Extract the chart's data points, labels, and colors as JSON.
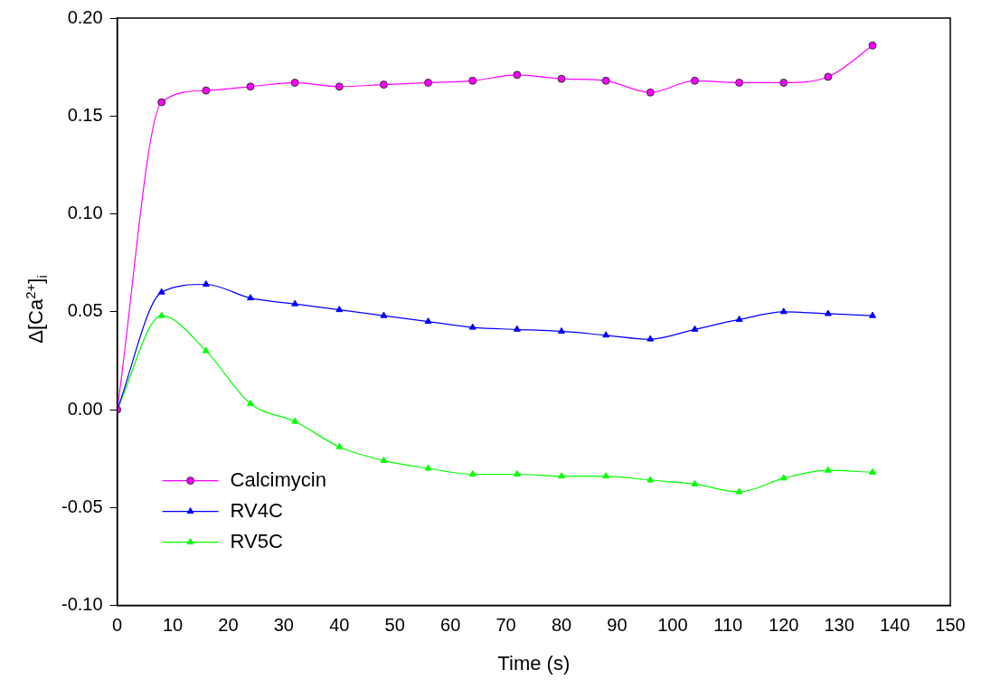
{
  "chart_data": {
    "type": "line",
    "xlabel": "Time (s)",
    "ylabel": "Δ[Ca$^{2+}$]$_{i}$",
    "xlim": [
      0,
      150
    ],
    "xticks": [
      0,
      10,
      20,
      30,
      40,
      50,
      60,
      70,
      80,
      90,
      100,
      110,
      120,
      130,
      140,
      150
    ],
    "ylim": [
      -0.1,
      0.2
    ],
    "yticks": [
      {
        "value": -0.1,
        "label": "-0.10"
      },
      {
        "value": -0.05,
        "label": "-0.05"
      },
      {
        "value": 0,
        "label": "0.00"
      },
      {
        "value": 0.05,
        "label": "0.05"
      },
      {
        "value": 0.1,
        "label": "0.10"
      },
      {
        "value": 0.15,
        "label": "0.15"
      },
      {
        "value": 0.2,
        "label": "0.20"
      }
    ],
    "grid": false,
    "legend": "bottom left",
    "x": [
      0,
      8,
      16,
      24,
      32,
      40,
      48,
      56,
      64,
      72,
      80,
      88,
      96,
      104,
      112,
      120,
      128,
      136
    ],
    "series": [
      {
        "name": "Calcimycin",
        "color": "#ff00ff",
        "marker": "circle",
        "values": [
          0,
          0.157,
          0.163,
          0.165,
          0.167,
          0.165,
          0.166,
          0.167,
          0.168,
          0.171,
          0.169,
          0.168,
          0.162,
          0.168,
          0.167,
          0.167,
          0.17,
          0.186
        ]
      },
      {
        "name": "RV4C",
        "color": "#0000ff",
        "marker": "triangle",
        "values": [
          0,
          0.06,
          0.064,
          0.057,
          0.054,
          0.051,
          0.048,
          0.045,
          0.042,
          0.041,
          0.04,
          0.038,
          0.036,
          0.041,
          0.046,
          0.05,
          0.049,
          0.048
        ]
      },
      {
        "name": "RV5C",
        "color": "#00ff00",
        "marker": "triangle",
        "values": [
          0,
          0.048,
          0.03,
          0.003,
          -0.006,
          -0.019,
          -0.026,
          -0.03,
          -0.033,
          -0.033,
          -0.034,
          -0.034,
          -0.036,
          -0.038,
          -0.042,
          -0.035,
          -0.031,
          -0.032
        ]
      }
    ]
  }
}
